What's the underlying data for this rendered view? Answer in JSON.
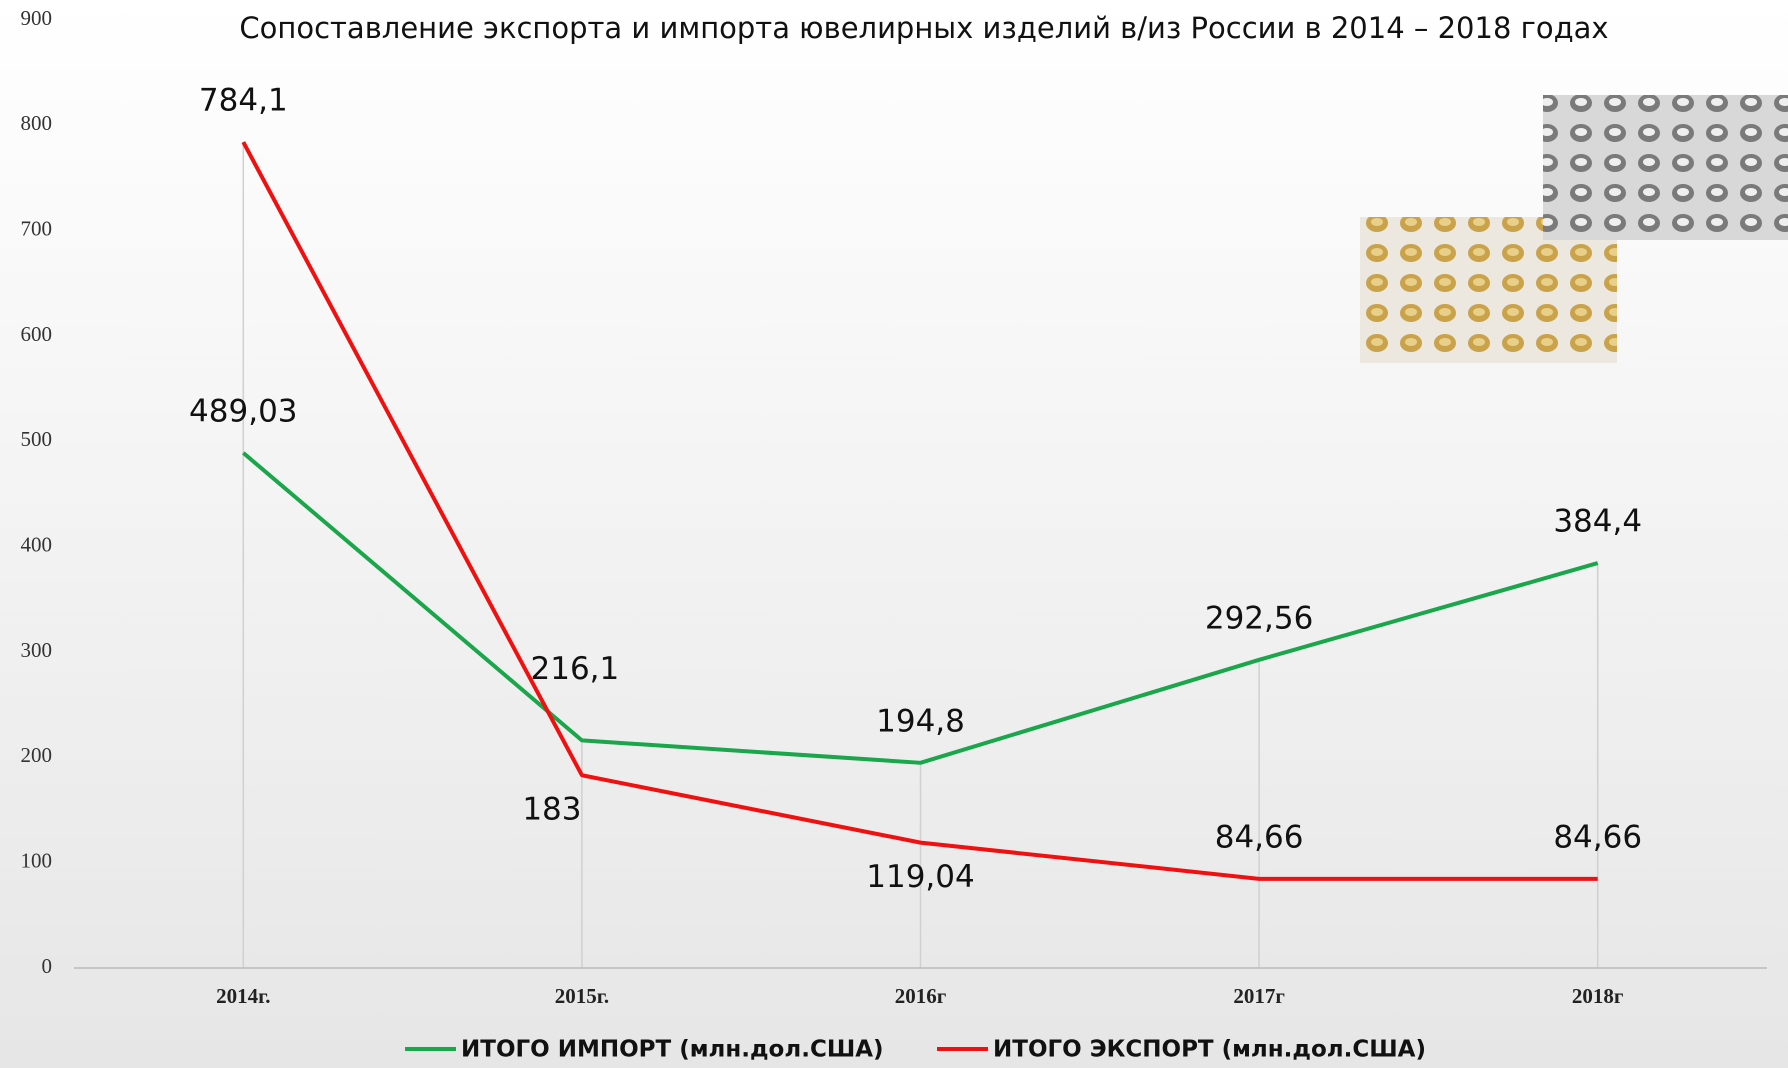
{
  "chart_data": {
    "type": "line",
    "title": "Сопоставление экспорта и импорта ювелирных изделий в/из России в 2014 – 2018 годах",
    "categories": [
      "2014г.",
      "2015г.",
      "2016г",
      "2017г",
      "2018г"
    ],
    "series": [
      {
        "name": "ИТОГО ИМПОРТ (млн.дол.США)",
        "color": "#1aa64a",
        "values": [
          489.03,
          216.1,
          194.8,
          292.56,
          384.4
        ],
        "value_labels": [
          "489,03",
          "216,1",
          "194,8",
          "292,56",
          "384,4"
        ]
      },
      {
        "name": "ИТОГО ЭКСПОРТ (млн.дол.США)",
        "color": "#f01010",
        "values": [
          784.1,
          183,
          119.04,
          84.66,
          84.66
        ],
        "value_labels": [
          "784,1",
          "183",
          "119,04",
          "84,66",
          "84,66"
        ]
      }
    ],
    "ylim": [
      0,
      900
    ],
    "yticks": [
      0,
      100,
      200,
      300,
      400,
      500,
      600,
      700,
      800,
      900
    ],
    "grid": false,
    "drop_lines": true,
    "legend": "bottom"
  }
}
